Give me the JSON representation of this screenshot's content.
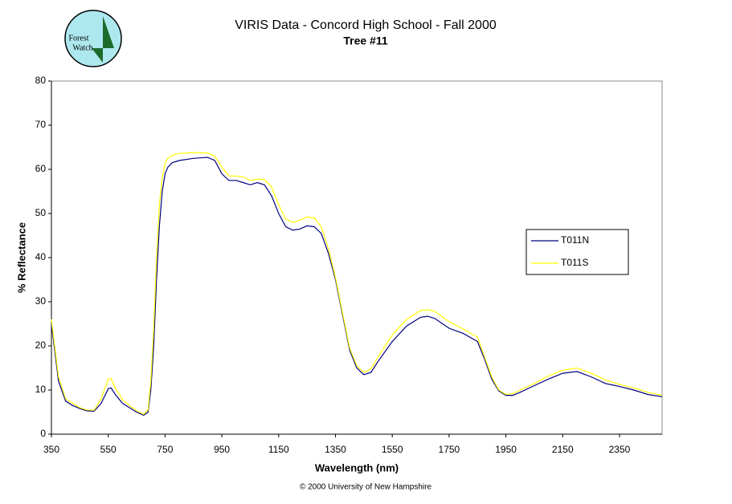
{
  "chart_data": {
    "type": "line",
    "title": "VIRIS Data - Concord High School - Fall 2000",
    "subtitle": "Tree #11",
    "x_label": "Wavelength (nm)",
    "y_label": "% Reflectance",
    "footer": "© 2000 University of New Hampshire",
    "x": [
      350,
      375,
      400,
      425,
      450,
      475,
      500,
      525,
      550,
      560,
      575,
      600,
      625,
      650,
      675,
      690,
      700,
      710,
      720,
      730,
      740,
      750,
      760,
      775,
      800,
      850,
      900,
      925,
      950,
      975,
      1000,
      1025,
      1050,
      1075,
      1100,
      1125,
      1150,
      1175,
      1200,
      1225,
      1250,
      1275,
      1300,
      1325,
      1350,
      1375,
      1400,
      1425,
      1450,
      1475,
      1500,
      1550,
      1600,
      1650,
      1675,
      1700,
      1750,
      1800,
      1850,
      1875,
      1900,
      1925,
      1950,
      1975,
      2000,
      2050,
      2100,
      2150,
      2200,
      2250,
      2300,
      2350,
      2400,
      2450,
      2500
    ],
    "series": [
      {
        "name": "T011N",
        "color": "#000080",
        "values": [
          25,
          12,
          7.5,
          6.5,
          5.8,
          5.3,
          5.2,
          7,
          10.3,
          10.5,
          9,
          7,
          6,
          5,
          4.3,
          5,
          10,
          20,
          35,
          47,
          55,
          59,
          60.5,
          61.5,
          62,
          62.5,
          62.7,
          62,
          59,
          57.5,
          57.5,
          57,
          56.5,
          57,
          56.5,
          54,
          50,
          47,
          46.2,
          46.5,
          47.2,
          47,
          45.5,
          41,
          35,
          27,
          19,
          15,
          13.5,
          14,
          16.5,
          21,
          24.5,
          26.5,
          26.7,
          26.2,
          24,
          22.8,
          21,
          17,
          12.5,
          9.8,
          8.8,
          8.8,
          9.5,
          11,
          12.5,
          13.8,
          14.2,
          13,
          11.5,
          10.8,
          10,
          9,
          8.5
        ]
      },
      {
        "name": "T011S",
        "color": "#ffff00",
        "values": [
          26,
          13,
          8,
          7,
          6,
          5.5,
          5.4,
          8,
          12.5,
          12.6,
          10.5,
          7.8,
          6.5,
          5.3,
          4.5,
          5.5,
          12,
          24,
          40,
          52,
          58,
          61.5,
          62.5,
          63.2,
          63.6,
          63.8,
          63.7,
          63,
          60.5,
          58.5,
          58.5,
          58.3,
          57.5,
          57.8,
          57.7,
          56,
          52,
          48.7,
          48,
          48.5,
          49.2,
          49,
          47,
          42,
          35.5,
          27.5,
          19.5,
          15.5,
          14,
          14.8,
          17.5,
          22.5,
          26,
          28,
          28.2,
          27.8,
          25.5,
          23.8,
          22,
          17.5,
          13,
          10,
          9,
          9.2,
          10,
          11.5,
          13.2,
          14.5,
          15,
          13.8,
          12.3,
          11.3,
          10.5,
          9.5,
          8.8
        ]
      }
    ],
    "xlim": [
      350,
      2500
    ],
    "ylim": [
      0,
      80
    ],
    "xticks": [
      350,
      550,
      750,
      950,
      1150,
      1350,
      1550,
      1750,
      1950,
      2150,
      2350
    ],
    "yticks": [
      0,
      10,
      20,
      30,
      40,
      50,
      60,
      70,
      80
    ],
    "legend": "right"
  },
  "logo": {
    "lines": [
      "Forest",
      "Watch"
    ]
  }
}
